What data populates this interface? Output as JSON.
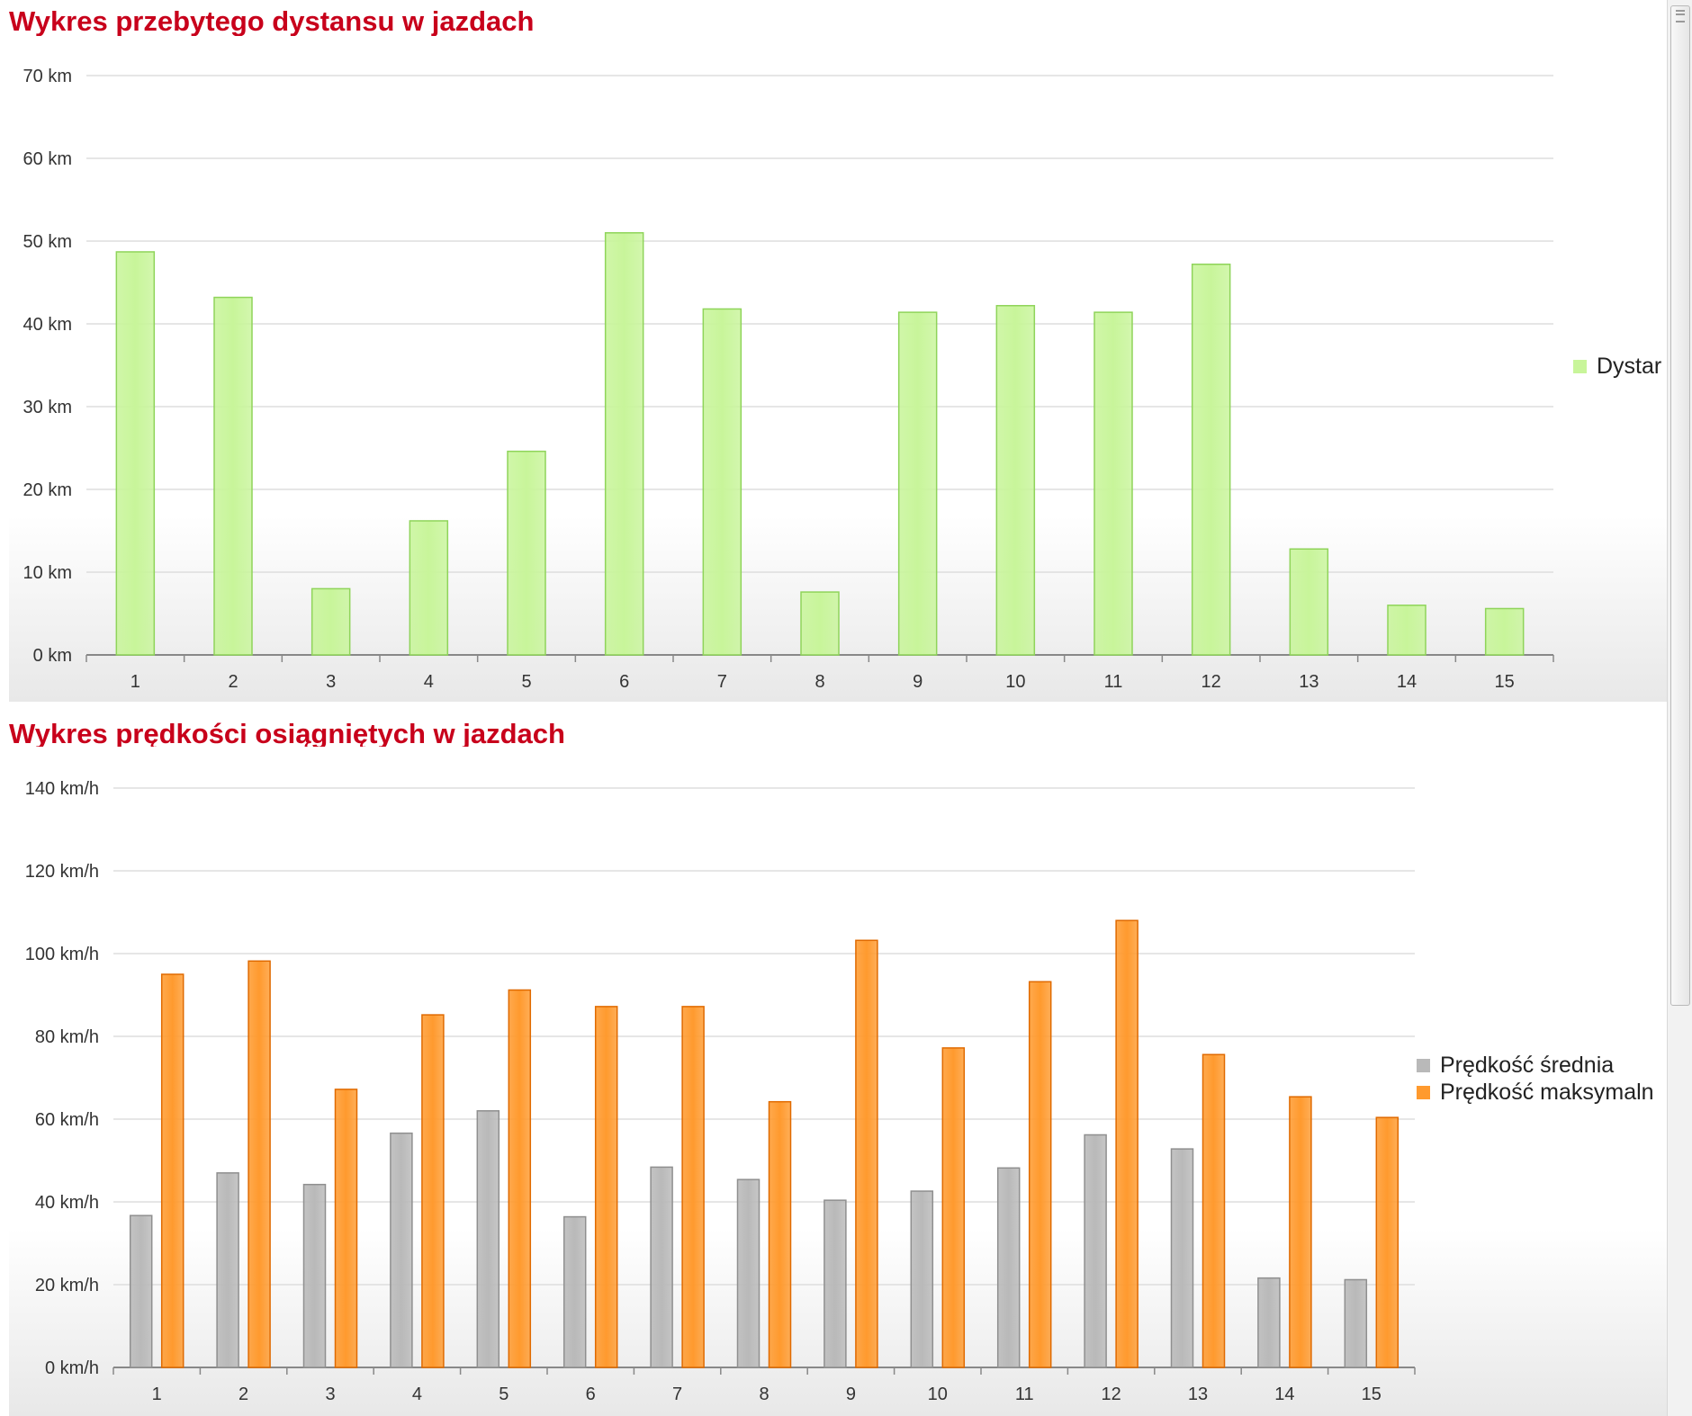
{
  "colors": {
    "title": "#c8001b",
    "distance_bar": "#c8f59a",
    "distance_bar_stroke": "#8fd45a",
    "avg_bar": "#b9b9b9",
    "avg_bar_stroke": "#8f8f8f",
    "max_bar": "#ff9a2e",
    "max_bar_stroke": "#e06a00",
    "grid": "#dddddd",
    "axis": "#888888",
    "tick_text": "#333333"
  },
  "chart_data": [
    {
      "type": "bar",
      "title": "Wykres przebytego dystansu w jazdach",
      "categories": [
        "1",
        "2",
        "3",
        "4",
        "5",
        "6",
        "7",
        "8",
        "9",
        "10",
        "11",
        "12",
        "13",
        "14",
        "15"
      ],
      "series": [
        {
          "name": "Dystar",
          "values": [
            48.7,
            43.2,
            8.0,
            16.2,
            24.6,
            51.0,
            41.8,
            7.6,
            41.4,
            42.2,
            41.4,
            47.2,
            12.8,
            6.0,
            5.6
          ]
        }
      ],
      "ylim": [
        0,
        70
      ],
      "yticks": [
        0,
        10,
        20,
        30,
        40,
        50,
        60,
        70
      ],
      "ytick_labels": [
        "0 km",
        "10 km",
        "20 km",
        "30 km",
        "40 km",
        "50 km",
        "60 km",
        "70 km"
      ],
      "xlabel": "",
      "ylabel": "",
      "legend": "right"
    },
    {
      "type": "bar",
      "title": "Wykres prędkości osiągniętych w jazdach",
      "categories": [
        "1",
        "2",
        "3",
        "4",
        "5",
        "6",
        "7",
        "8",
        "9",
        "10",
        "11",
        "12",
        "13",
        "14",
        "15"
      ],
      "series": [
        {
          "name": "Prędkość średnia",
          "values": [
            36.7,
            47.0,
            44.2,
            56.6,
            62.0,
            36.4,
            48.4,
            45.4,
            40.4,
            42.6,
            48.2,
            56.2,
            52.8,
            21.6,
            21.2
          ]
        },
        {
          "name": "Prędkość maksymaln",
          "values": [
            95.0,
            98.2,
            67.2,
            85.2,
            91.2,
            87.2,
            87.2,
            64.2,
            103.2,
            77.2,
            93.2,
            108.0,
            75.6,
            65.4,
            60.4
          ]
        }
      ],
      "ylim": [
        0,
        140
      ],
      "yticks": [
        0,
        20,
        40,
        60,
        80,
        100,
        120,
        140
      ],
      "ytick_labels": [
        "0 km/h",
        "20 km/h",
        "40 km/h",
        "60 km/h",
        "80 km/h",
        "100 km/h",
        "120 km/h",
        "140 km/h"
      ],
      "xlabel": "",
      "ylabel": "",
      "legend": "right"
    }
  ]
}
